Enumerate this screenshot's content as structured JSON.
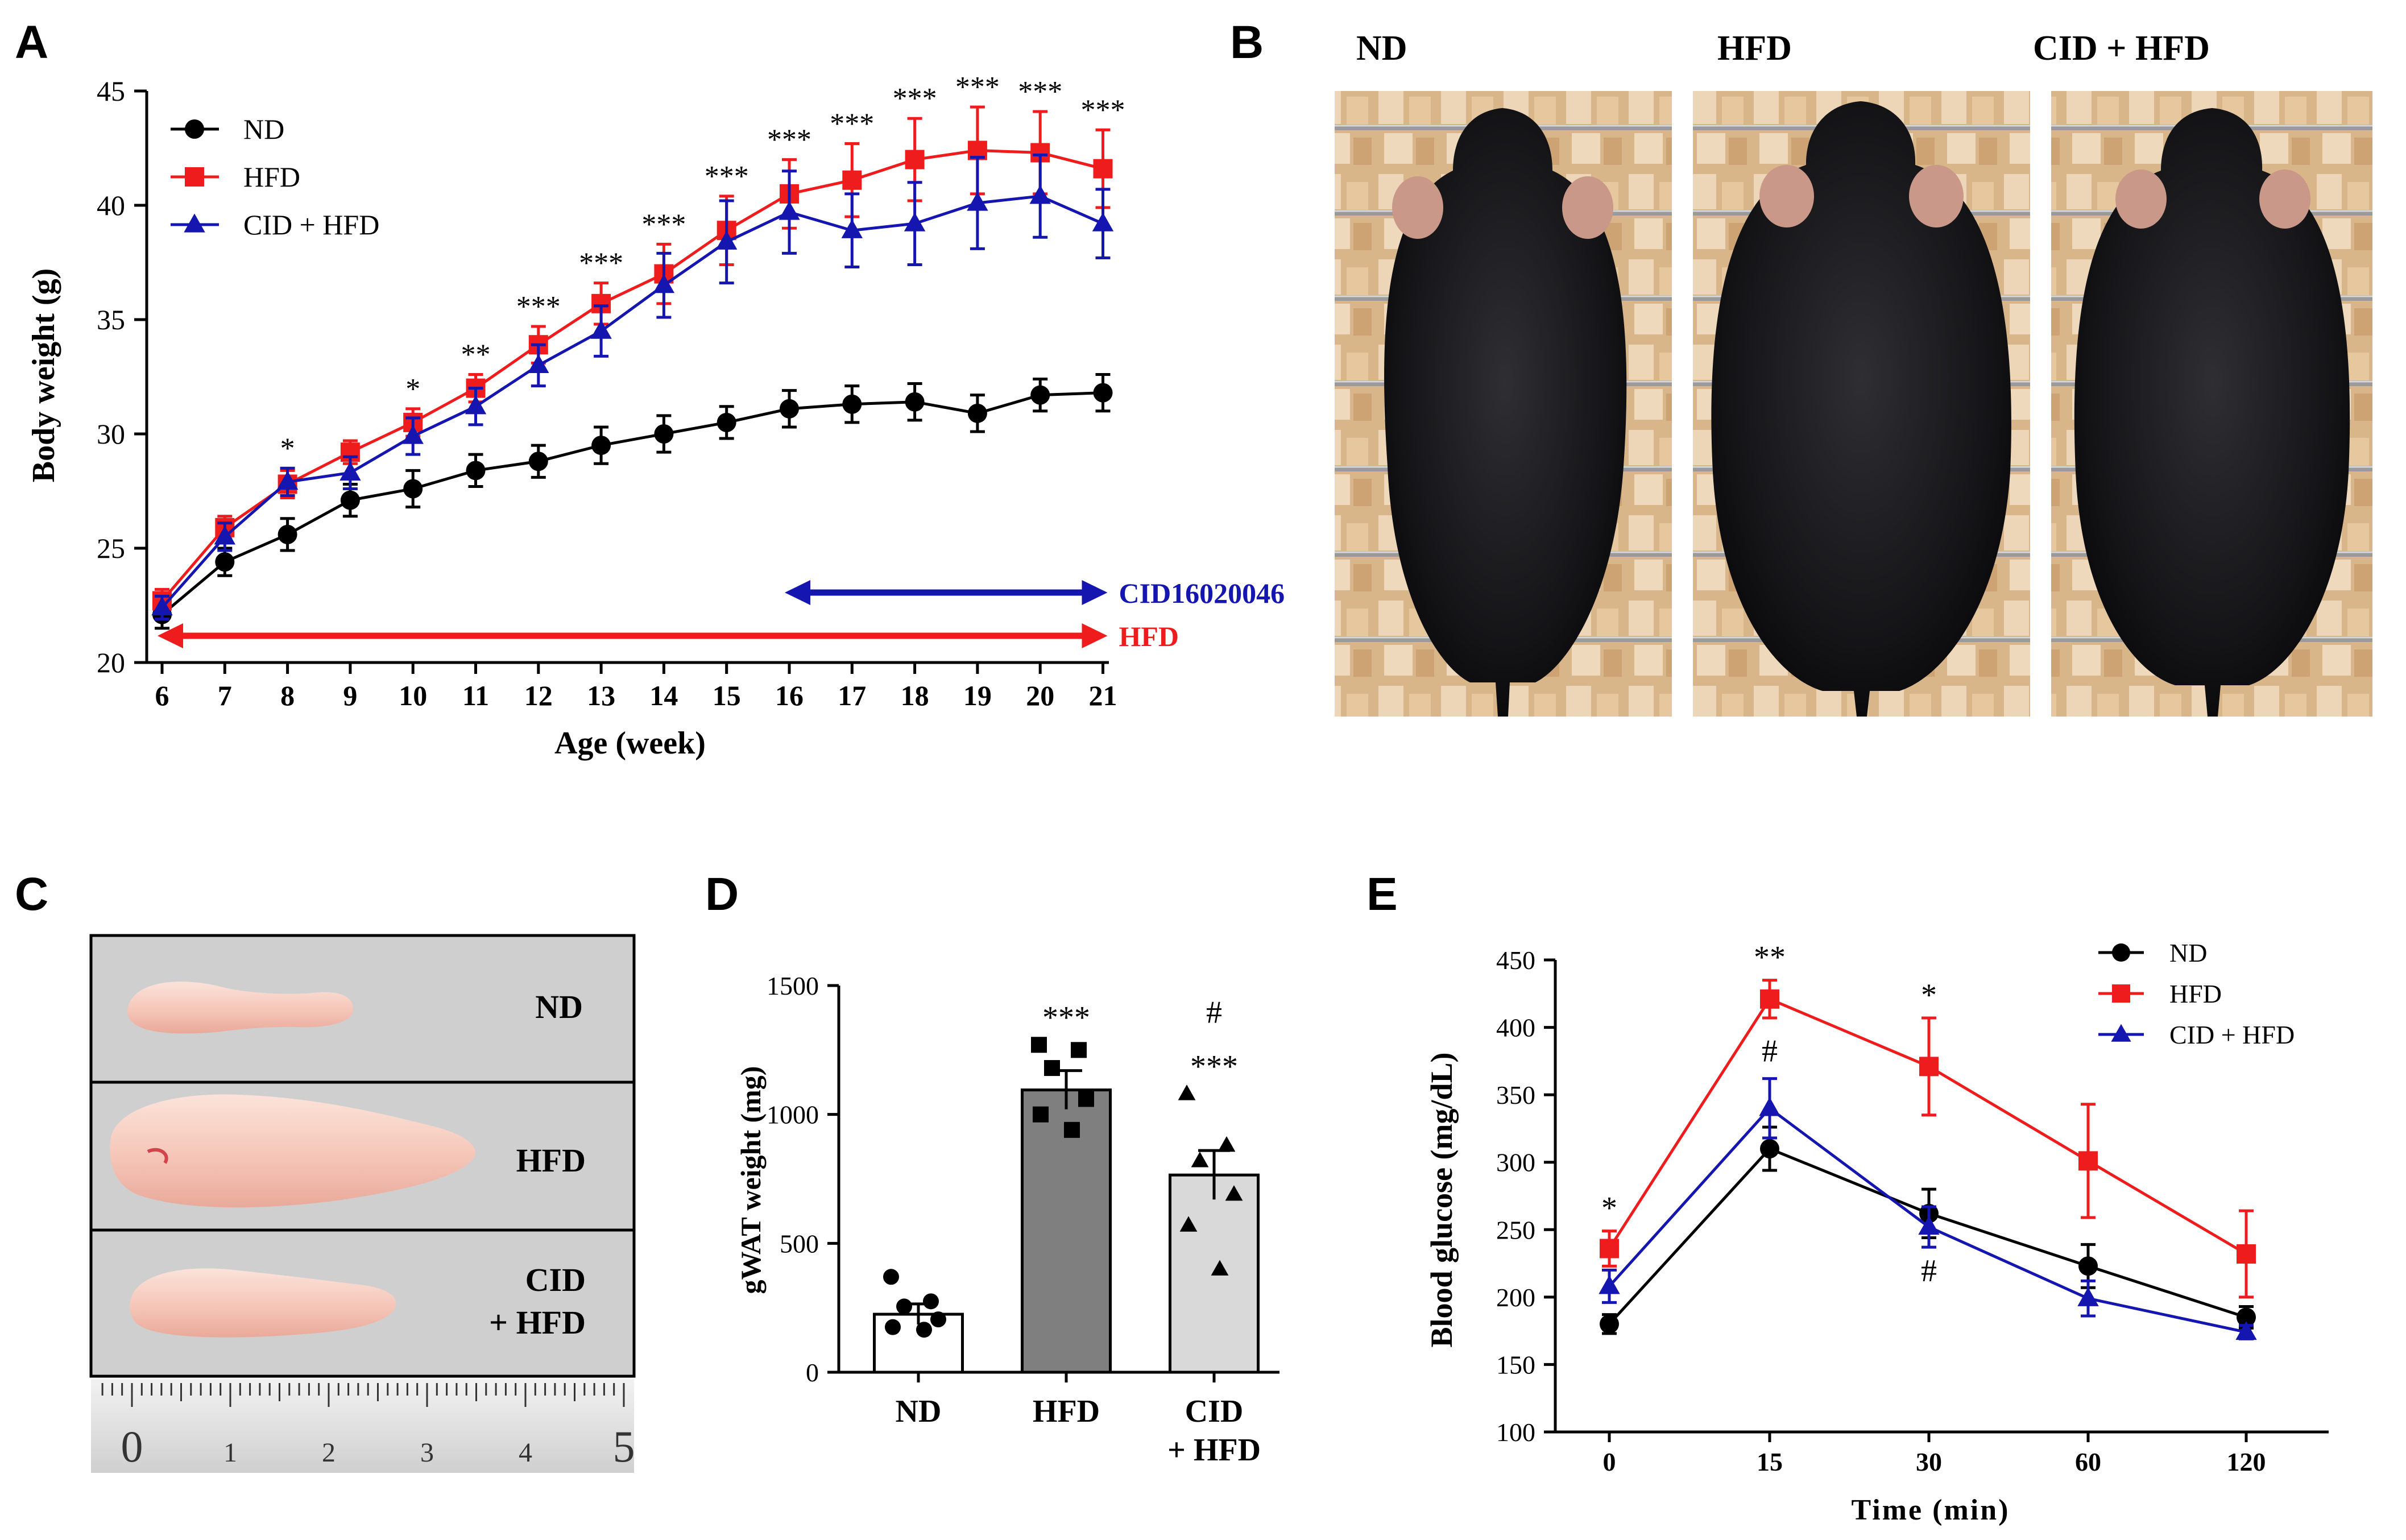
{
  "panel_letters": [
    "A",
    "B",
    "C",
    "D",
    "E"
  ],
  "colors": {
    "nd": "#000000",
    "hfd": "#ee1c1c",
    "cid": "#1515b0"
  },
  "chart_data": [
    {
      "panel": "A",
      "type": "line",
      "xlabel": "Age (week)",
      "ylabel": "Body weight (g)",
      "x": [
        6,
        7,
        8,
        9,
        10,
        11,
        12,
        13,
        14,
        15,
        16,
        17,
        18,
        19,
        20,
        21
      ],
      "ylim": [
        20,
        45
      ],
      "yticks": [
        20,
        25,
        30,
        35,
        40,
        45
      ],
      "legend": "top-left",
      "series": [
        {
          "name": "ND",
          "color": "#000000",
          "marker": "circle",
          "values": [
            22.1,
            24.4,
            25.6,
            27.1,
            27.6,
            28.4,
            28.8,
            29.5,
            30.0,
            30.5,
            31.1,
            31.3,
            31.4,
            30.9,
            31.7,
            31.8
          ],
          "errors": [
            0.6,
            0.6,
            0.7,
            0.7,
            0.8,
            0.7,
            0.7,
            0.8,
            0.8,
            0.7,
            0.8,
            0.8,
            0.8,
            0.8,
            0.7,
            0.8
          ]
        },
        {
          "name": "HFD",
          "color": "#ee1c1c",
          "marker": "square",
          "values": [
            22.7,
            25.9,
            27.8,
            29.2,
            30.5,
            32.0,
            33.9,
            35.7,
            37.0,
            38.9,
            40.5,
            41.1,
            42.0,
            42.4,
            42.3,
            41.6
          ],
          "errors": [
            0.5,
            0.5,
            0.6,
            0.5,
            0.6,
            0.6,
            0.8,
            0.9,
            1.3,
            1.5,
            1.5,
            1.6,
            1.8,
            1.9,
            1.8,
            1.7
          ]
        },
        {
          "name": "CID + HFD",
          "color": "#1515b0",
          "marker": "triangle",
          "values": [
            22.4,
            25.5,
            27.9,
            28.3,
            29.9,
            31.2,
            33.0,
            34.5,
            36.5,
            38.4,
            39.7,
            38.9,
            39.2,
            40.1,
            40.4,
            39.2
          ],
          "errors": [
            0.5,
            0.6,
            0.6,
            0.7,
            0.8,
            0.8,
            0.9,
            1.1,
            1.4,
            1.8,
            1.8,
            1.6,
            1.8,
            2.0,
            1.8,
            1.5
          ]
        }
      ],
      "significance": [
        {
          "x": 8,
          "label": "*"
        },
        {
          "x": 10,
          "label": "*"
        },
        {
          "x": 11,
          "label": "**"
        },
        {
          "x": 12,
          "label": "***"
        },
        {
          "x": 13,
          "label": "***"
        },
        {
          "x": 14,
          "label": "***"
        },
        {
          "x": 15,
          "label": "***"
        },
        {
          "x": 16,
          "label": "***"
        },
        {
          "x": 17,
          "label": "***"
        },
        {
          "x": 18,
          "label": "***"
        },
        {
          "x": 19,
          "label": "***"
        },
        {
          "x": 20,
          "label": "***"
        },
        {
          "x": 21,
          "label": "***"
        }
      ],
      "periods": [
        {
          "label": "CID16020046",
          "start": 16,
          "end": 21,
          "color": "#1515b0"
        },
        {
          "label": "HFD",
          "start": 6,
          "end": 21,
          "color": "#ee1c1c"
        }
      ]
    },
    {
      "panel": "D",
      "type": "bar",
      "ylabel": "gWAT weight (mg)",
      "categories": [
        "ND",
        "HFD",
        "CID\n+ HFD"
      ],
      "values": [
        225,
        1095,
        765
      ],
      "errors": [
        40,
        75,
        95
      ],
      "bar_colors": [
        "#ffffff",
        "#7f7f7f",
        "#d9d9d9"
      ],
      "ylim": [
        0,
        1500
      ],
      "yticks": [
        0,
        500,
        1000,
        1500
      ],
      "points": [
        [
          370,
          275,
          255,
          205,
          175,
          165
        ],
        [
          1270,
          1250,
          1180,
          1060,
          1000,
          940
        ],
        [
          1080,
          880,
          820,
          690,
          570,
          400
        ]
      ],
      "point_markers": [
        "circle",
        "square",
        "triangle"
      ],
      "annotations": [
        {
          "category": 1,
          "label": "***"
        },
        {
          "category": 2,
          "label": "***"
        },
        {
          "category": 2,
          "label": "#"
        }
      ]
    },
    {
      "panel": "E",
      "type": "line",
      "xlabel": "Time (min)",
      "ylabel": "Blood glucose (mg/dL)",
      "x": [
        0,
        15,
        30,
        60,
        120
      ],
      "x_scale": "categorical",
      "ylim": [
        100,
        450
      ],
      "yticks": [
        100,
        150,
        200,
        250,
        300,
        350,
        400,
        450
      ],
      "legend": "top-right",
      "series": [
        {
          "name": "ND",
          "color": "#000000",
          "marker": "circle",
          "values": [
            180,
            310,
            262,
            223,
            185
          ],
          "errors": [
            7,
            16,
            18,
            16,
            8
          ]
        },
        {
          "name": "HFD",
          "color": "#ee1c1c",
          "marker": "square",
          "values": [
            236,
            421,
            371,
            301,
            232
          ],
          "errors": [
            13,
            14,
            36,
            42,
            32
          ]
        },
        {
          "name": "CID + HFD",
          "color": "#1515b0",
          "marker": "triangle",
          "values": [
            208,
            340,
            252,
            199,
            174
          ],
          "errors": [
            12,
            22,
            15,
            13,
            5
          ]
        }
      ],
      "annotations": [
        {
          "x": 0,
          "label": "*"
        },
        {
          "x": 15,
          "label": "**"
        },
        {
          "x": 15,
          "label": "#"
        },
        {
          "x": 30,
          "label": "*"
        },
        {
          "x": 30,
          "label": "#"
        }
      ]
    }
  ],
  "panel_B": {
    "labels": [
      "ND",
      "HFD",
      "CID + HFD"
    ]
  },
  "panel_C": {
    "labels": [
      [
        "ND"
      ],
      [
        "HFD"
      ],
      [
        "CID",
        "+ HFD"
      ]
    ],
    "ruler_numbers": [
      "0",
      "1",
      "2",
      "3",
      "4",
      "5"
    ]
  }
}
